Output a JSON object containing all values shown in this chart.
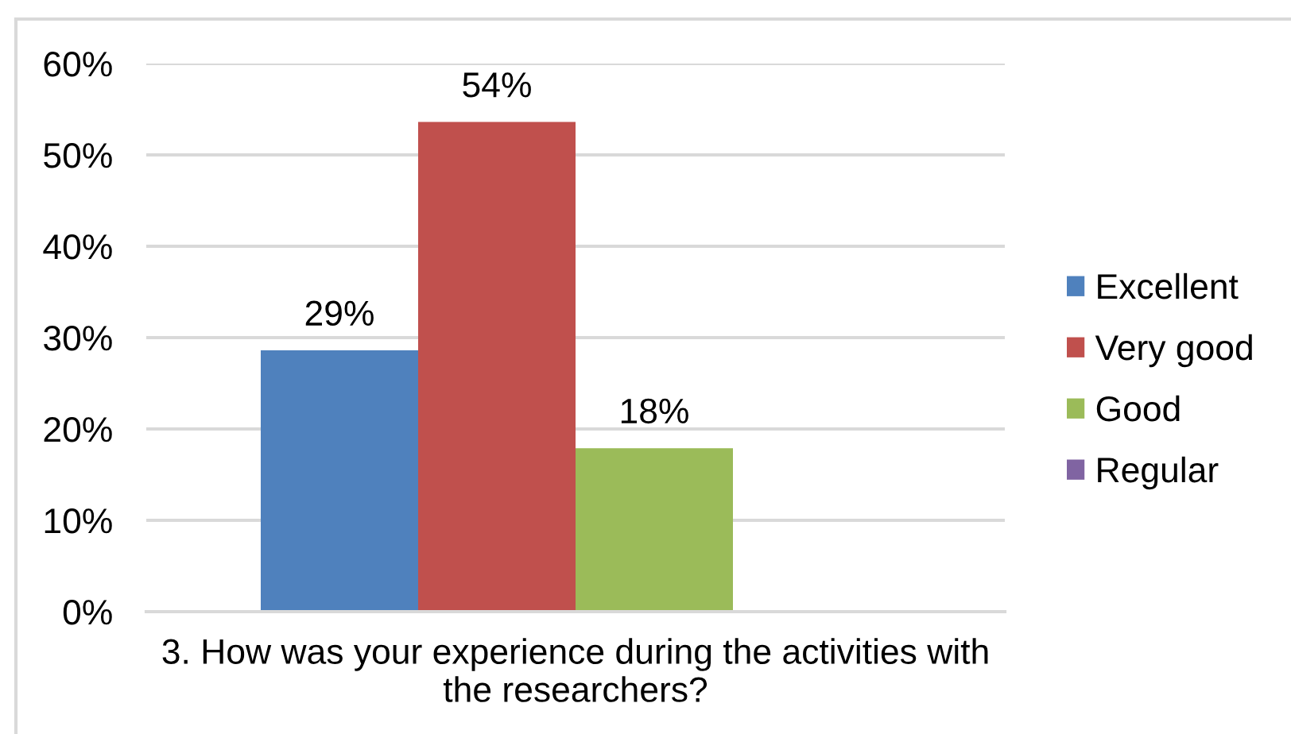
{
  "chart_data": {
    "type": "bar",
    "categories": [
      "3. How was your experience during the activities with the researchers?"
    ],
    "series": [
      {
        "name": "Excellent",
        "color": "#4f81bd",
        "values": [
          28.6
        ],
        "value_labels": [
          "29%"
        ]
      },
      {
        "name": "Very good",
        "color": "#c0504d",
        "values": [
          53.6
        ],
        "value_labels": [
          "54%"
        ]
      },
      {
        "name": "Good",
        "color": "#9bbb59",
        "values": [
          17.9
        ],
        "value_labels": [
          "18%"
        ]
      },
      {
        "name": "Regular",
        "color": "#8064a2",
        "values": [
          0
        ],
        "value_labels": [
          null
        ]
      }
    ],
    "ylim": [
      0,
      60
    ],
    "yticks": [
      {
        "value": 0,
        "label": "0%"
      },
      {
        "value": 10,
        "label": "10%"
      },
      {
        "value": 20,
        "label": "20%"
      },
      {
        "value": 30,
        "label": "30%"
      },
      {
        "value": 40,
        "label": "40%"
      },
      {
        "value": 50,
        "label": "50%"
      },
      {
        "value": 60,
        "label": "60%"
      }
    ],
    "grid": "y",
    "legend": "right"
  }
}
